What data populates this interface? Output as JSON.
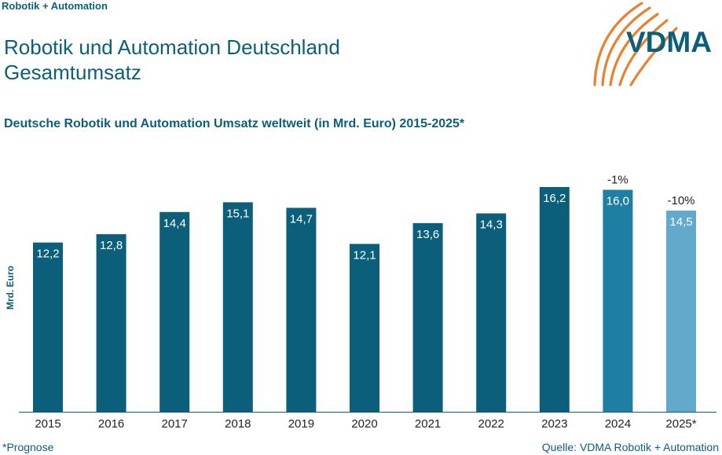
{
  "header_tag": "Robotik + Automation",
  "title_line1": "Robotik und Automation Deutschland",
  "title_line2": "Gesamtumsatz",
  "subtitle": "Deutsche Robotik und Automation Umsatz weltweit (in Mrd. Euro) 2015-2025*",
  "footnote": "*Prognose",
  "source": "Quelle: VDMA Robotik + Automation",
  "logo_text": "VDMA",
  "colors": {
    "text": "#0b5f7a",
    "bar": "#0b5f7a",
    "bar_2024": "#1e7fa3",
    "bar_forecast": "#62a9cc",
    "logo_orange": "#e8822e"
  },
  "chart_data": {
    "type": "bar",
    "categories": [
      "2015",
      "2016",
      "2017",
      "2018",
      "2019",
      "2020",
      "2021",
      "2022",
      "2023",
      "2024",
      "2025*"
    ],
    "values": [
      12.2,
      12.8,
      14.4,
      15.1,
      14.7,
      12.1,
      13.6,
      14.3,
      16.2,
      16.0,
      14.5
    ],
    "value_labels": [
      "12,2",
      "12,8",
      "14,4",
      "15,1",
      "14,7",
      "12,1",
      "13,6",
      "14,3",
      "16,2",
      "16,0",
      "14,5"
    ],
    "annotations": [
      {
        "category": "2024",
        "text": "-1%"
      },
      {
        "category": "2025*",
        "text": "-10%"
      }
    ],
    "ylabel": "Mrd. Euro",
    "ylim": [
      0,
      16.2
    ],
    "grid": false,
    "legend": "none"
  }
}
